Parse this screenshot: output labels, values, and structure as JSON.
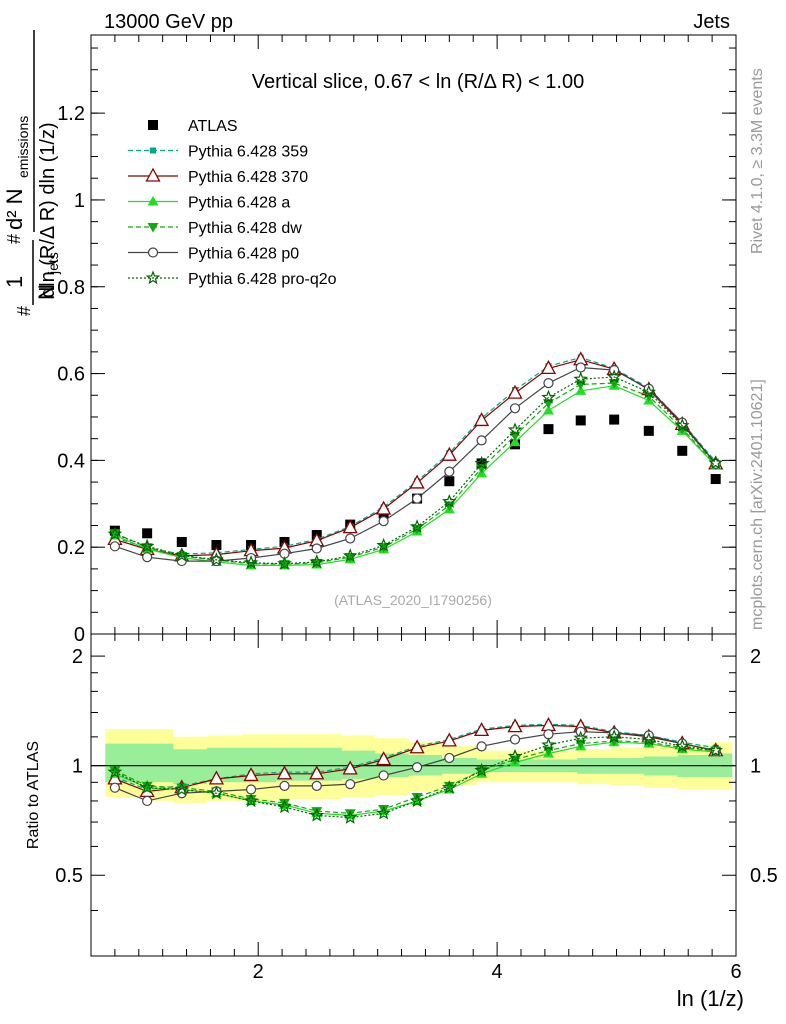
{
  "header": {
    "left": "13000 GeV pp",
    "right": "Jets"
  },
  "sidebar": {
    "rivet": "Rivet 4.1.0, ≥ 3.3M events",
    "mcplots": "mcplots.cern.ch [arXiv:2401.10621]"
  },
  "chart_data": [
    {
      "type": "scatter",
      "title": "Vertical slice, 0.67 < ln (R/Δ R) < 1.00",
      "watermark": "(ATLAS_2020_I1790256)",
      "xlabel": "ln (1/z)",
      "ylabel_parts": [
        "1",
        "N",
        "jets",
        "d² N",
        "emissions",
        "dln (R/Δ R) dln (1/z)",
        "#",
        "#"
      ],
      "xlim": [
        0.6,
        6.0
      ],
      "ylim": [
        0,
        1.38
      ],
      "xticks": [
        2,
        4,
        6
      ],
      "yticks": [
        0,
        0.2,
        0.4,
        0.6,
        0.8,
        1,
        1.2
      ],
      "ytick_labels": [
        "0",
        "0.2",
        "0.4",
        "0.6",
        "0.8",
        "1",
        "1.2"
      ],
      "x": [
        0.8,
        1.07,
        1.36,
        1.65,
        1.94,
        2.22,
        2.49,
        2.77,
        3.05,
        3.33,
        3.6,
        3.87,
        4.15,
        4.43,
        4.7,
        4.98,
        5.27,
        5.55,
        5.83
      ],
      "series": [
        {
          "name": "ATLAS",
          "style": "data",
          "color": "#000000",
          "marker": "square",
          "values": [
            0.238,
            0.232,
            0.212,
            0.205,
            0.205,
            0.212,
            0.228,
            0.252,
            0.278,
            0.312,
            0.352,
            0.393,
            0.437,
            0.472,
            0.492,
            0.494,
            0.468,
            0.422,
            0.357
          ]
        },
        {
          "name": "Pythia 6.428 359",
          "style": "dashed",
          "color": "#00aa88",
          "marker": "smallsquare",
          "values": [
            0.222,
            0.198,
            0.184,
            0.187,
            0.195,
            0.202,
            0.218,
            0.248,
            0.292,
            0.352,
            0.417,
            0.497,
            0.562,
            0.617,
            0.637,
            0.612,
            0.567,
            0.487,
            0.397
          ]
        },
        {
          "name": "Pythia 6.428 370",
          "style": "solid",
          "color": "#8b0000",
          "marker": "triangle-open",
          "values": [
            0.218,
            0.195,
            0.18,
            0.183,
            0.192,
            0.198,
            0.215,
            0.245,
            0.288,
            0.348,
            0.412,
            0.492,
            0.555,
            0.612,
            0.632,
            0.61,
            0.563,
            0.483,
            0.392
          ]
        },
        {
          "name": "Pythia 6.428 a",
          "style": "solid",
          "color": "#22dd22",
          "marker": "triangle",
          "values": [
            0.227,
            0.196,
            0.176,
            0.166,
            0.158,
            0.158,
            0.16,
            0.172,
            0.195,
            0.236,
            0.287,
            0.37,
            0.442,
            0.515,
            0.56,
            0.572,
            0.538,
            0.468,
            0.388
          ]
        },
        {
          "name": "Pythia 6.428 dw",
          "style": "dashed",
          "color": "#11aa11",
          "marker": "triangle-down",
          "values": [
            0.232,
            0.2,
            0.18,
            0.17,
            0.162,
            0.161,
            0.164,
            0.177,
            0.2,
            0.242,
            0.296,
            0.382,
            0.457,
            0.532,
            0.575,
            0.578,
            0.548,
            0.473,
            0.39
          ]
        },
        {
          "name": "Pythia 6.428 p0",
          "style": "solid",
          "color": "#444444",
          "marker": "circle-open",
          "values": [
            0.202,
            0.177,
            0.168,
            0.168,
            0.175,
            0.185,
            0.197,
            0.22,
            0.26,
            0.312,
            0.374,
            0.446,
            0.52,
            0.578,
            0.614,
            0.608,
            0.565,
            0.487,
            0.392
          ]
        },
        {
          "name": "Pythia 6.428 pro-q2o",
          "style": "dotted",
          "color": "#006600",
          "marker": "star",
          "values": [
            0.23,
            0.202,
            0.181,
            0.171,
            0.164,
            0.162,
            0.166,
            0.18,
            0.204,
            0.247,
            0.305,
            0.393,
            0.47,
            0.545,
            0.587,
            0.592,
            0.557,
            0.48,
            0.394
          ]
        }
      ],
      "legend_position": "top-left"
    },
    {
      "type": "line",
      "ylabel": "Ratio to ATLAS",
      "xlim": [
        0.6,
        6.0
      ],
      "ylim": [
        0.3,
        2.3
      ],
      "xticks": [
        2,
        4,
        6
      ],
      "xtick_labels": [
        "2",
        "4",
        "6"
      ],
      "yticks": [
        0.5,
        1,
        2
      ],
      "ytick_labels": [
        "0.5",
        "1",
        "2"
      ],
      "x": [
        0.8,
        1.07,
        1.36,
        1.65,
        1.94,
        2.22,
        2.49,
        2.77,
        3.05,
        3.33,
        3.6,
        3.87,
        4.15,
        4.43,
        4.7,
        4.98,
        5.27,
        5.55,
        5.83
      ],
      "reference": 1,
      "band_edges": [
        0.72,
        1.09,
        1.29,
        1.57,
        1.86,
        2.15,
        2.42,
        2.7,
        2.98,
        3.26,
        3.54,
        3.83,
        4.11,
        4.39,
        4.67,
        4.95,
        5.23,
        5.51,
        5.79,
        5.97
      ],
      "band_outer_low": [
        0.82,
        0.8,
        0.79,
        0.8,
        0.8,
        0.81,
        0.81,
        0.82,
        0.83,
        0.85,
        0.88,
        0.9,
        0.9,
        0.9,
        0.89,
        0.88,
        0.87,
        0.86,
        0.86
      ],
      "band_outer_high": [
        1.26,
        1.26,
        1.2,
        1.21,
        1.22,
        1.22,
        1.22,
        1.21,
        1.19,
        1.16,
        1.13,
        1.1,
        1.1,
        1.1,
        1.11,
        1.12,
        1.13,
        1.14,
        1.16
      ],
      "band_inner_low": [
        0.9,
        0.9,
        0.89,
        0.9,
        0.9,
        0.91,
        0.91,
        0.92,
        0.93,
        0.94,
        0.95,
        0.96,
        0.96,
        0.96,
        0.95,
        0.95,
        0.94,
        0.93,
        0.93
      ],
      "band_inner_high": [
        1.15,
        1.15,
        1.11,
        1.12,
        1.12,
        1.12,
        1.12,
        1.1,
        1.08,
        1.07,
        1.05,
        1.04,
        1.04,
        1.04,
        1.05,
        1.05,
        1.06,
        1.07,
        1.08
      ],
      "series": [
        {
          "name": "Pythia 6.428 359",
          "values": [
            0.93,
            0.86,
            0.88,
            0.92,
            0.95,
            0.96,
            0.96,
            0.99,
            1.05,
            1.13,
            1.18,
            1.26,
            1.29,
            1.3,
            1.29,
            1.24,
            1.21,
            1.16,
            1.12
          ]
        },
        {
          "name": "Pythia 6.428 370",
          "values": [
            0.92,
            0.85,
            0.87,
            0.92,
            0.94,
            0.95,
            0.95,
            0.98,
            1.04,
            1.12,
            1.17,
            1.25,
            1.28,
            1.29,
            1.28,
            1.23,
            1.2,
            1.15,
            1.1
          ]
        },
        {
          "name": "Pythia 6.428 a",
          "values": [
            0.95,
            0.87,
            0.86,
            0.84,
            0.8,
            0.78,
            0.74,
            0.73,
            0.75,
            0.8,
            0.86,
            0.95,
            1.02,
            1.08,
            1.13,
            1.16,
            1.15,
            1.11,
            1.09
          ]
        },
        {
          "name": "Pythia 6.428 dw",
          "values": [
            0.97,
            0.88,
            0.87,
            0.85,
            0.81,
            0.79,
            0.75,
            0.74,
            0.76,
            0.82,
            0.88,
            0.97,
            1.04,
            1.1,
            1.15,
            1.17,
            1.16,
            1.12,
            1.1
          ]
        },
        {
          "name": "Pythia 6.428 p0",
          "values": [
            0.87,
            0.8,
            0.84,
            0.85,
            0.86,
            0.88,
            0.88,
            0.89,
            0.94,
            0.99,
            1.05,
            1.13,
            1.18,
            1.22,
            1.24,
            1.23,
            1.21,
            1.15,
            1.1
          ]
        },
        {
          "name": "Pythia 6.428 pro-q2o",
          "values": [
            0.96,
            0.87,
            0.86,
            0.84,
            0.8,
            0.77,
            0.73,
            0.72,
            0.74,
            0.8,
            0.87,
            0.97,
            1.06,
            1.14,
            1.19,
            1.2,
            1.18,
            1.13,
            1.1
          ]
        }
      ]
    }
  ]
}
